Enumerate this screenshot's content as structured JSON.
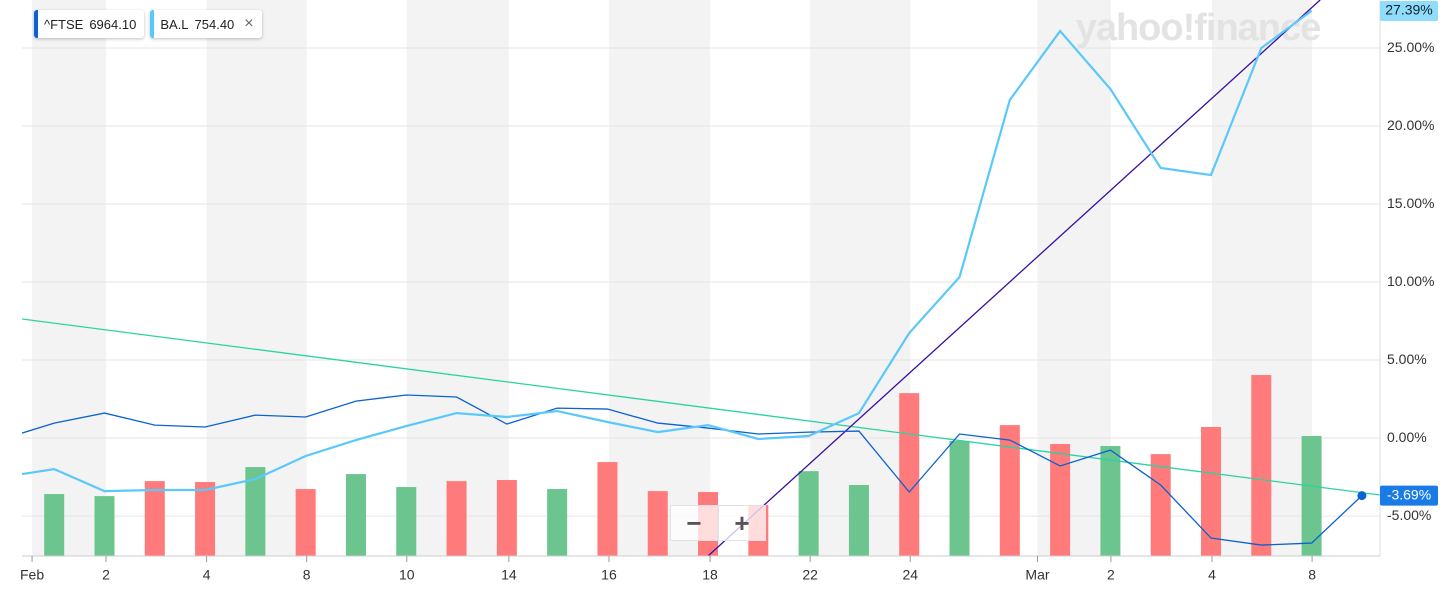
{
  "chart_data": {
    "type": "line",
    "watermark": "yahoo!finance",
    "x": [
      -0.64,
      0,
      1,
      2,
      3,
      4,
      5,
      6,
      7,
      8,
      9,
      10,
      11,
      12,
      13,
      14,
      15,
      16,
      17,
      18,
      19,
      20,
      21,
      22,
      23,
      24,
      25,
      26
    ],
    "series": [
      {
        "name": "^FTSE",
        "price": "6964.10",
        "color": "#0b62d0",
        "last_label": "-3.69%",
        "values": [
          0.32,
          0.96,
          1.6,
          0.83,
          0.71,
          1.47,
          1.35,
          2.37,
          2.76,
          2.63,
          0.9,
          1.92,
          1.86,
          0.96,
          0.64,
          0.26,
          0.38,
          0.45,
          -3.46,
          0.26,
          -0.13,
          -1.79,
          -0.77,
          -3.01,
          -6.41,
          -6.86,
          -6.73,
          -3.69
        ]
      },
      {
        "name": "BA.L",
        "price": "754.40",
        "color": "#5ac8fa",
        "last_label": "27.39%",
        "values": [
          -2.31,
          -1.99,
          -3.4,
          -3.33,
          -3.33,
          -2.63,
          -1.15,
          -0.13,
          0.77,
          1.6,
          1.35,
          1.73,
          1.03,
          0.38,
          0.83,
          -0.06,
          0.13,
          1.6,
          6.73,
          10.32,
          21.67,
          26.09,
          22.37,
          17.31,
          16.86,
          25.0,
          27.39,
          null
        ]
      }
    ],
    "volume": {
      "values": [
        -3.59,
        -3.72,
        -2.76,
        -2.82,
        -1.86,
        -3.27,
        -2.31,
        -3.14,
        -2.76,
        -2.69,
        -3.27,
        -1.54,
        -3.4,
        -3.46,
        -4.29,
        -2.12,
        -3.01,
        2.88,
        -0.19,
        0.83,
        -0.38,
        -0.51,
        -1.03,
        0.71,
        4.04,
        0.13
      ],
      "colors": [
        "#6cc58f",
        "#6cc58f",
        "#ff7a7a",
        "#ff7a7a",
        "#6cc58f",
        "#ff7a7a",
        "#6cc58f",
        "#6cc58f",
        "#ff7a7a",
        "#ff7a7a",
        "#6cc58f",
        "#ff7a7a",
        "#ff7a7a",
        "#ff7a7a",
        "#ff7a7a",
        "#6cc58f",
        "#6cc58f",
        "#ff7a7a",
        "#6cc58f",
        "#ff7a7a",
        "#ff7a7a",
        "#6cc58f",
        "#ff7a7a",
        "#ff7a7a",
        "#ff7a7a",
        "#6cc58f"
      ]
    },
    "trendlines": [
      {
        "color": "#2bd3a4",
        "x": [
          -0.64,
          26.36
        ],
        "y": [
          7.63,
          -3.65
        ]
      },
      {
        "color": "#3a0ca3",
        "x": [
          13.0,
          25.17
        ],
        "y": [
          -7.56,
          28.08
        ]
      }
    ],
    "xlim": [
      -0.64,
      26.36
    ],
    "ylim": [
      -7.56,
      28.08
    ],
    "xticks": [
      {
        "value": -0.44,
        "label": "Feb"
      },
      {
        "value": 1.03,
        "label": "2"
      },
      {
        "value": 3.03,
        "label": "4"
      },
      {
        "value": 5.02,
        "label": "8"
      },
      {
        "value": 7.01,
        "label": "10"
      },
      {
        "value": 9.04,
        "label": "14"
      },
      {
        "value": 11.03,
        "label": "16"
      },
      {
        "value": 13.04,
        "label": "18"
      },
      {
        "value": 15.03,
        "label": "22"
      },
      {
        "value": 17.02,
        "label": "24"
      },
      {
        "value": 19.55,
        "label": "Mar"
      },
      {
        "value": 21.01,
        "label": "2"
      },
      {
        "value": 23.02,
        "label": "4"
      },
      {
        "value": 25.01,
        "label": "8"
      }
    ],
    "yticks": [
      {
        "value": -5,
        "label": "-5.00%"
      },
      {
        "value": 0,
        "label": "0.00%"
      },
      {
        "value": 5,
        "label": "5.00%"
      },
      {
        "value": 10,
        "label": "10.00%"
      },
      {
        "value": 15,
        "label": "15.00%"
      },
      {
        "value": 20,
        "label": "20.00%"
      },
      {
        "value": 25,
        "label": "25.00%"
      }
    ],
    "grid": true,
    "controls": {
      "zoom_out": "−",
      "zoom_in": "+",
      "close": "×"
    }
  }
}
